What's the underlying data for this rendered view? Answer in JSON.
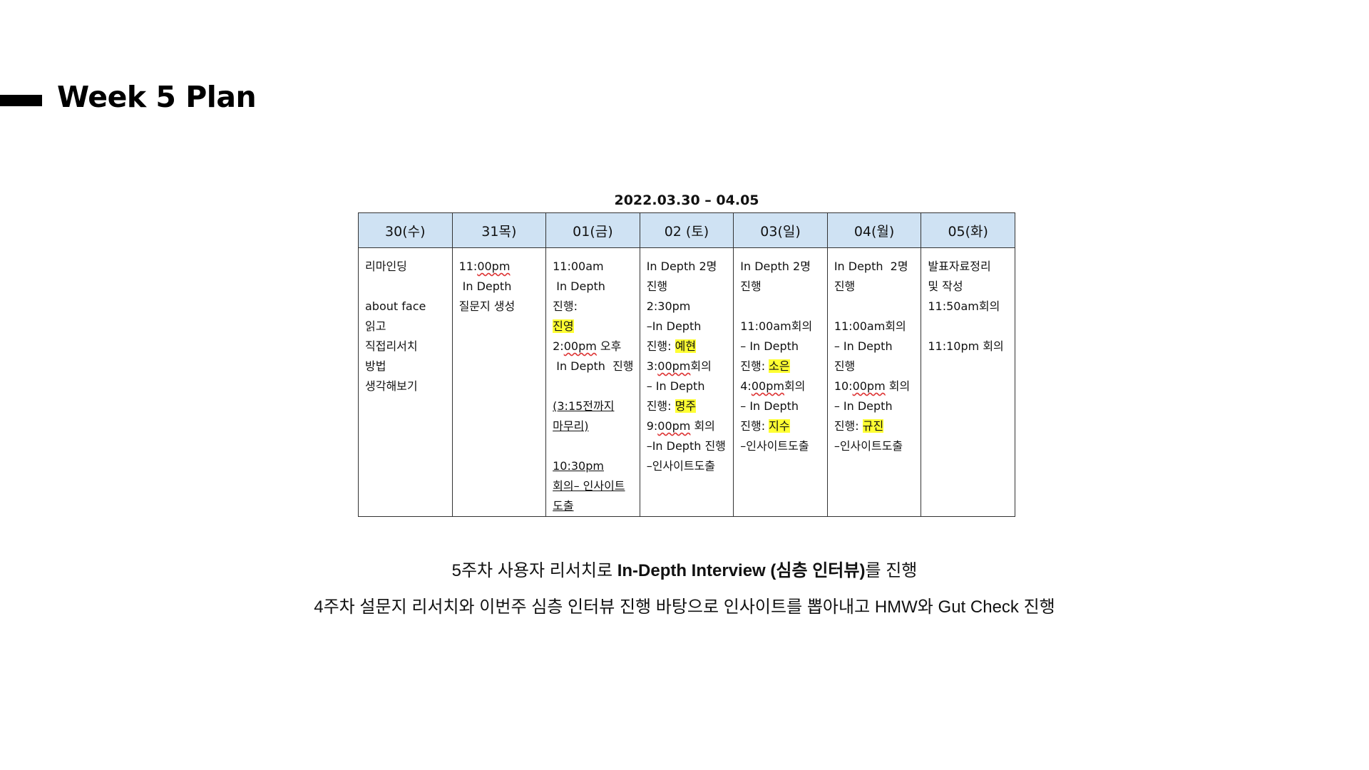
{
  "page": {
    "title": "Week 5 Plan"
  },
  "table": {
    "caption": "2022.03.30 – 04.05",
    "headers": [
      "30(수)",
      "31목)",
      "01(금)",
      "02 (토)",
      "03(일)",
      "04(월)",
      "05(화)"
    ],
    "cells": [
      [
        {
          "t": "리마인딩\n\nabout face\n읽고\n직접리서치\n방법\n생각해보기"
        }
      ],
      [
        {
          "t": "11:"
        },
        {
          "t": "00pm",
          "s": "wavy"
        },
        {
          "t": "\n In Depth\n질문지 생성"
        }
      ],
      [
        {
          "t": "11:00am\n In Depth 진행:\n"
        },
        {
          "t": "진영",
          "s": "hl"
        },
        {
          "t": "\n2:"
        },
        {
          "t": "00pm",
          "s": "wavy"
        },
        {
          "t": " 오후\n In Depth  진행\n\n"
        },
        {
          "t": "(3:15전까지\n마무리)",
          "s": "ul"
        },
        {
          "t": "\n\n"
        },
        {
          "t": "10:30pm\n회의– 인사이트\n도출",
          "s": "ul"
        }
      ],
      [
        {
          "t": "In Depth 2명\n진행\n2:30pm\n–In Depth\n진행: "
        },
        {
          "t": "예현",
          "s": "hl"
        },
        {
          "t": "\n3:"
        },
        {
          "t": "00pm",
          "s": "wavy"
        },
        {
          "t": "회의\n– In Depth\n진행: "
        },
        {
          "t": "명주",
          "s": "hl"
        },
        {
          "t": "\n9:"
        },
        {
          "t": "00pm",
          "s": "wavy"
        },
        {
          "t": " 회의\n–In Depth 진행\n–인사이트도출"
        }
      ],
      [
        {
          "t": "In Depth 2명\n진행\n\n11:00am회의\n– In Depth\n진행: "
        },
        {
          "t": "소은",
          "s": "hl"
        },
        {
          "t": "\n4:"
        },
        {
          "t": "00pm",
          "s": "wavy"
        },
        {
          "t": "회의\n– In Depth\n진행: "
        },
        {
          "t": "지수",
          "s": "hl"
        },
        {
          "t": "\n–인사이트도출"
        }
      ],
      [
        {
          "t": "In Depth  2명\n진행\n\n11:00am회의\n– In Depth\n진행\n10:"
        },
        {
          "t": "00pm",
          "s": "wavy"
        },
        {
          "t": " 회의\n– In Depth\n진행: "
        },
        {
          "t": "규진",
          "s": "hl"
        },
        {
          "t": "\n–인사이트도출"
        }
      ],
      [
        {
          "t": "발표자료정리\n및 작성\n11:50am회의\n\n11:10pm 회의"
        }
      ]
    ]
  },
  "summary": {
    "line1_pre": "5주차 사용자 리서치로 ",
    "line1_bold": "In-Depth Interview (심층 인터뷰)",
    "line1_post": "를 진행",
    "line2": "4주차 설문지 리서치와 이번주 심층 인터뷰 진행 바탕으로 인사이트를 뽑아내고 HMW와 Gut Check 진행"
  },
  "colors": {
    "header_bg": "#cfe2f3",
    "highlight": "#ffff33",
    "title_bar": "#000000"
  }
}
